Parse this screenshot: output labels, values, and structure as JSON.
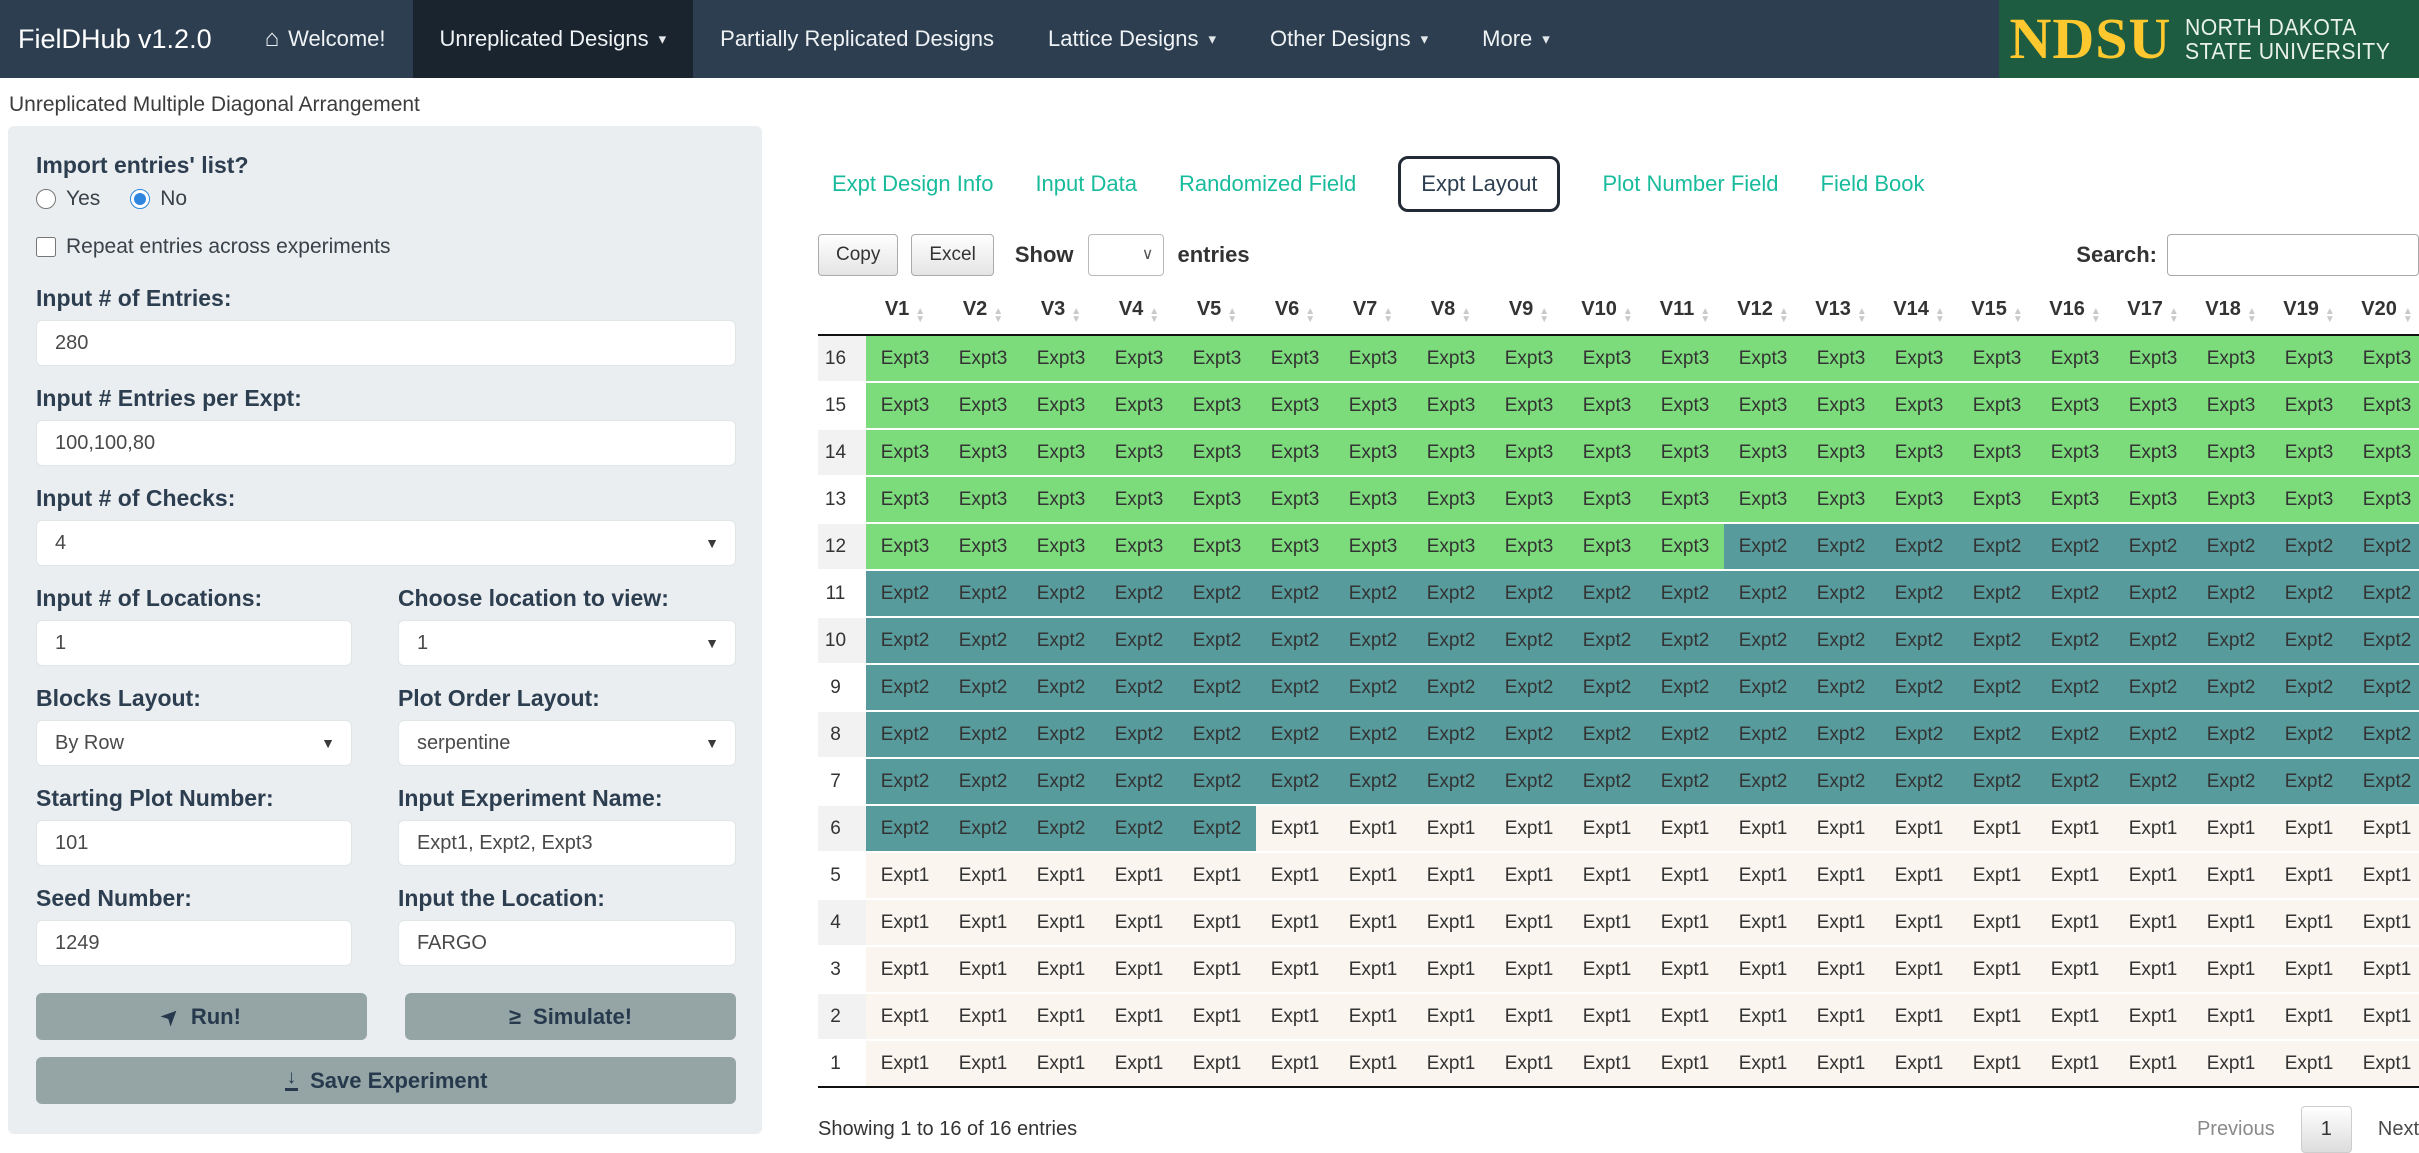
{
  "navbar": {
    "brand": "FielDHub v1.2.0",
    "caret_glyph": "▾",
    "items": [
      {
        "label": "Welcome!",
        "icon": "home-icon",
        "icon_glyph": "⌂",
        "active": false,
        "caret": false
      },
      {
        "label": "Unreplicated Designs",
        "active": true,
        "caret": true
      },
      {
        "label": "Partially Replicated Designs",
        "active": false,
        "caret": false
      },
      {
        "label": "Lattice Designs",
        "active": false,
        "caret": true
      },
      {
        "label": "Other Designs",
        "active": false,
        "caret": true
      },
      {
        "label": "More",
        "active": false,
        "caret": true
      }
    ],
    "logo": {
      "acronym": "NDSU",
      "line1": "NORTH DAKOTA",
      "line2": "STATE UNIVERSITY",
      "bg_color": "#1d5c40",
      "gold_color": "#ffc82e"
    }
  },
  "page_title": "Unreplicated Multiple Diagonal Arrangement",
  "sidebar": {
    "import_label": "Import entries' list?",
    "radio_yes": "Yes",
    "radio_no": "No",
    "radio_selected": "No",
    "repeat_checkbox_label": "Repeat entries across experiments",
    "repeat_checkbox_checked": false,
    "fields": {
      "entries": {
        "label": "Input # of Entries:",
        "value": "280"
      },
      "entries_per_expt": {
        "label": "Input # Entries per Expt:",
        "value": "100,100,80"
      },
      "checks": {
        "label": "Input # of Checks:",
        "value": "4"
      },
      "locations": {
        "label": "Input # of Locations:",
        "value": "1"
      },
      "location_view": {
        "label": "Choose location to view:",
        "value": "1"
      },
      "blocks_layout": {
        "label": "Blocks Layout:",
        "value": "By Row"
      },
      "plot_order": {
        "label": "Plot Order Layout:",
        "value": "serpentine"
      },
      "starting_plot": {
        "label": "Starting Plot Number:",
        "value": "101"
      },
      "expt_name": {
        "label": "Input Experiment Name:",
        "value": "Expt1, Expt2, Expt3"
      },
      "seed": {
        "label": "Seed Number:",
        "value": "1249"
      },
      "location_name": {
        "label": "Input the Location:",
        "value": "FARGO"
      }
    },
    "buttons": {
      "run": "Run!",
      "run_icon": "run-location-arrow-icon",
      "run_icon_glyph": "➤",
      "simulate": "Simulate!",
      "simulate_icon": "greater-than-equal-icon",
      "simulate_icon_glyph": "≥",
      "save": "Save Experiment",
      "save_icon": "download-icon",
      "save_icon_glyph": "↓"
    }
  },
  "tabs": {
    "active": "Expt Layout",
    "items": [
      "Expt Design Info",
      "Input Data",
      "Randomized Field",
      "Expt Layout",
      "Plot Number Field",
      "Field Book"
    ],
    "link_color": "#18bc9c"
  },
  "toolbar": {
    "copy": "Copy",
    "excel": "Excel",
    "show": "Show",
    "entries": "entries",
    "show_selected_value": "",
    "search_label": "Search:",
    "search_value": ""
  },
  "table": {
    "columns": [
      "V1",
      "V2",
      "V3",
      "V4",
      "V5",
      "V6",
      "V7",
      "V8",
      "V9",
      "V10",
      "V11",
      "V12",
      "V13",
      "V14",
      "V15",
      "V16",
      "V17",
      "V18",
      "V19",
      "V20"
    ],
    "sort_icon_up": "▲",
    "sort_icon_down": "▼",
    "expt_colors": {
      "Expt1": "#faf5ef",
      "Expt2": "#579b9d",
      "Expt3": "#7cdc7c"
    },
    "rows": [
      {
        "name": "16",
        "cells": [
          "Expt3",
          "Expt3",
          "Expt3",
          "Expt3",
          "Expt3",
          "Expt3",
          "Expt3",
          "Expt3",
          "Expt3",
          "Expt3",
          "Expt3",
          "Expt3",
          "Expt3",
          "Expt3",
          "Expt3",
          "Expt3",
          "Expt3",
          "Expt3",
          "Expt3",
          "Expt3"
        ]
      },
      {
        "name": "15",
        "cells": [
          "Expt3",
          "Expt3",
          "Expt3",
          "Expt3",
          "Expt3",
          "Expt3",
          "Expt3",
          "Expt3",
          "Expt3",
          "Expt3",
          "Expt3",
          "Expt3",
          "Expt3",
          "Expt3",
          "Expt3",
          "Expt3",
          "Expt3",
          "Expt3",
          "Expt3",
          "Expt3"
        ]
      },
      {
        "name": "14",
        "cells": [
          "Expt3",
          "Expt3",
          "Expt3",
          "Expt3",
          "Expt3",
          "Expt3",
          "Expt3",
          "Expt3",
          "Expt3",
          "Expt3",
          "Expt3",
          "Expt3",
          "Expt3",
          "Expt3",
          "Expt3",
          "Expt3",
          "Expt3",
          "Expt3",
          "Expt3",
          "Expt3"
        ]
      },
      {
        "name": "13",
        "cells": [
          "Expt3",
          "Expt3",
          "Expt3",
          "Expt3",
          "Expt3",
          "Expt3",
          "Expt3",
          "Expt3",
          "Expt3",
          "Expt3",
          "Expt3",
          "Expt3",
          "Expt3",
          "Expt3",
          "Expt3",
          "Expt3",
          "Expt3",
          "Expt3",
          "Expt3",
          "Expt3"
        ]
      },
      {
        "name": "12",
        "cells": [
          "Expt3",
          "Expt3",
          "Expt3",
          "Expt3",
          "Expt3",
          "Expt3",
          "Expt3",
          "Expt3",
          "Expt3",
          "Expt3",
          "Expt3",
          "Expt2",
          "Expt2",
          "Expt2",
          "Expt2",
          "Expt2",
          "Expt2",
          "Expt2",
          "Expt2",
          "Expt2"
        ]
      },
      {
        "name": "11",
        "cells": [
          "Expt2",
          "Expt2",
          "Expt2",
          "Expt2",
          "Expt2",
          "Expt2",
          "Expt2",
          "Expt2",
          "Expt2",
          "Expt2",
          "Expt2",
          "Expt2",
          "Expt2",
          "Expt2",
          "Expt2",
          "Expt2",
          "Expt2",
          "Expt2",
          "Expt2",
          "Expt2"
        ]
      },
      {
        "name": "10",
        "cells": [
          "Expt2",
          "Expt2",
          "Expt2",
          "Expt2",
          "Expt2",
          "Expt2",
          "Expt2",
          "Expt2",
          "Expt2",
          "Expt2",
          "Expt2",
          "Expt2",
          "Expt2",
          "Expt2",
          "Expt2",
          "Expt2",
          "Expt2",
          "Expt2",
          "Expt2",
          "Expt2"
        ]
      },
      {
        "name": "9",
        "cells": [
          "Expt2",
          "Expt2",
          "Expt2",
          "Expt2",
          "Expt2",
          "Expt2",
          "Expt2",
          "Expt2",
          "Expt2",
          "Expt2",
          "Expt2",
          "Expt2",
          "Expt2",
          "Expt2",
          "Expt2",
          "Expt2",
          "Expt2",
          "Expt2",
          "Expt2",
          "Expt2"
        ]
      },
      {
        "name": "8",
        "cells": [
          "Expt2",
          "Expt2",
          "Expt2",
          "Expt2",
          "Expt2",
          "Expt2",
          "Expt2",
          "Expt2",
          "Expt2",
          "Expt2",
          "Expt2",
          "Expt2",
          "Expt2",
          "Expt2",
          "Expt2",
          "Expt2",
          "Expt2",
          "Expt2",
          "Expt2",
          "Expt2"
        ]
      },
      {
        "name": "7",
        "cells": [
          "Expt2",
          "Expt2",
          "Expt2",
          "Expt2",
          "Expt2",
          "Expt2",
          "Expt2",
          "Expt2",
          "Expt2",
          "Expt2",
          "Expt2",
          "Expt2",
          "Expt2",
          "Expt2",
          "Expt2",
          "Expt2",
          "Expt2",
          "Expt2",
          "Expt2",
          "Expt2"
        ]
      },
      {
        "name": "6",
        "cells": [
          "Expt2",
          "Expt2",
          "Expt2",
          "Expt2",
          "Expt2",
          "Expt1",
          "Expt1",
          "Expt1",
          "Expt1",
          "Expt1",
          "Expt1",
          "Expt1",
          "Expt1",
          "Expt1",
          "Expt1",
          "Expt1",
          "Expt1",
          "Expt1",
          "Expt1",
          "Expt1"
        ]
      },
      {
        "name": "5",
        "cells": [
          "Expt1",
          "Expt1",
          "Expt1",
          "Expt1",
          "Expt1",
          "Expt1",
          "Expt1",
          "Expt1",
          "Expt1",
          "Expt1",
          "Expt1",
          "Expt1",
          "Expt1",
          "Expt1",
          "Expt1",
          "Expt1",
          "Expt1",
          "Expt1",
          "Expt1",
          "Expt1"
        ]
      },
      {
        "name": "4",
        "cells": [
          "Expt1",
          "Expt1",
          "Expt1",
          "Expt1",
          "Expt1",
          "Expt1",
          "Expt1",
          "Expt1",
          "Expt1",
          "Expt1",
          "Expt1",
          "Expt1",
          "Expt1",
          "Expt1",
          "Expt1",
          "Expt1",
          "Expt1",
          "Expt1",
          "Expt1",
          "Expt1"
        ]
      },
      {
        "name": "3",
        "cells": [
          "Expt1",
          "Expt1",
          "Expt1",
          "Expt1",
          "Expt1",
          "Expt1",
          "Expt1",
          "Expt1",
          "Expt1",
          "Expt1",
          "Expt1",
          "Expt1",
          "Expt1",
          "Expt1",
          "Expt1",
          "Expt1",
          "Expt1",
          "Expt1",
          "Expt1",
          "Expt1"
        ]
      },
      {
        "name": "2",
        "cells": [
          "Expt1",
          "Expt1",
          "Expt1",
          "Expt1",
          "Expt1",
          "Expt1",
          "Expt1",
          "Expt1",
          "Expt1",
          "Expt1",
          "Expt1",
          "Expt1",
          "Expt1",
          "Expt1",
          "Expt1",
          "Expt1",
          "Expt1",
          "Expt1",
          "Expt1",
          "Expt1"
        ]
      },
      {
        "name": "1",
        "cells": [
          "Expt1",
          "Expt1",
          "Expt1",
          "Expt1",
          "Expt1",
          "Expt1",
          "Expt1",
          "Expt1",
          "Expt1",
          "Expt1",
          "Expt1",
          "Expt1",
          "Expt1",
          "Expt1",
          "Expt1",
          "Expt1",
          "Expt1",
          "Expt1",
          "Expt1",
          "Expt1"
        ]
      }
    ]
  },
  "footer": {
    "info": "Showing 1 to 16 of 16 entries",
    "previous": "Previous",
    "page": "1",
    "next": "Next"
  }
}
